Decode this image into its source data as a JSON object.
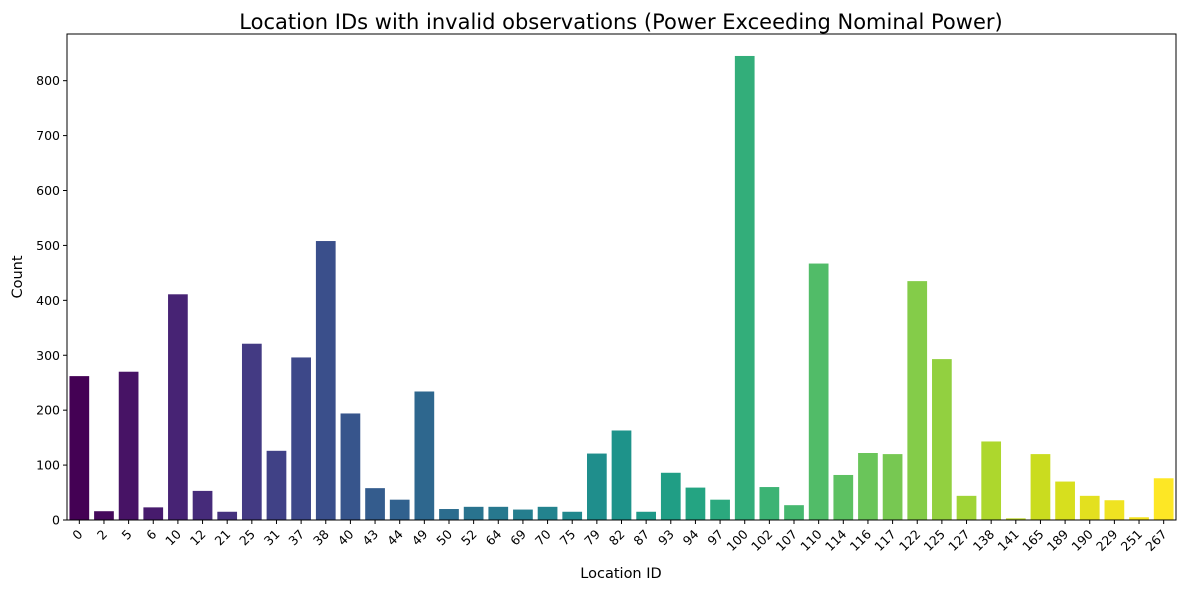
{
  "chart_data": {
    "type": "bar",
    "title": "Location IDs with invalid observations (Power Exceeding Nominal Power)",
    "xlabel": "Location ID",
    "ylabel": "Count",
    "ylim": [
      0,
      885
    ],
    "yticks": [
      0,
      100,
      200,
      300,
      400,
      500,
      600,
      700,
      800
    ],
    "grid": false,
    "legend": "none",
    "palette": "viridis",
    "categories": [
      "0",
      "2",
      "5",
      "6",
      "10",
      "12",
      "21",
      "25",
      "31",
      "37",
      "38",
      "40",
      "43",
      "44",
      "49",
      "50",
      "52",
      "64",
      "69",
      "70",
      "75",
      "79",
      "82",
      "87",
      "93",
      "94",
      "97",
      "100",
      "102",
      "107",
      "110",
      "114",
      "116",
      "117",
      "122",
      "125",
      "127",
      "138",
      "141",
      "165",
      "189",
      "190",
      "229",
      "251",
      "267"
    ],
    "values": [
      262,
      16,
      270,
      23,
      411,
      53,
      15,
      321,
      126,
      296,
      508,
      194,
      58,
      37,
      234,
      20,
      24,
      24,
      19,
      24,
      15,
      121,
      163,
      15,
      86,
      59,
      37,
      845,
      60,
      27,
      467,
      82,
      122,
      120,
      435,
      293,
      44,
      143,
      3,
      120,
      70,
      44,
      36,
      5,
      76
    ],
    "colors": [
      "#440154",
      "#450a5c",
      "#471365",
      "#471b6d",
      "#472374",
      "#462b7a",
      "#45327e",
      "#433a83",
      "#404186",
      "#3d4889",
      "#3a4f8b",
      "#37558c",
      "#345c8d",
      "#31618e",
      "#2e678e",
      "#2c6d8e",
      "#29738e",
      "#27788e",
      "#257e8e",
      "#23838e",
      "#21888d",
      "#1f8e8c",
      "#1e938a",
      "#1e9988",
      "#209e85",
      "#24a482",
      "#2ba97e",
      "#33ae7a",
      "#3cb374",
      "#46b86f",
      "#51bc68",
      "#5dc162",
      "#6ac55a",
      "#77c852",
      "#84cc49",
      "#92d040",
      "#a0d436",
      "#add72d",
      "#bcd926",
      "#cadc1f",
      "#d7df1e",
      "#e3e01f",
      "#efe321",
      "#f6e41f",
      "#fde725"
    ]
  }
}
